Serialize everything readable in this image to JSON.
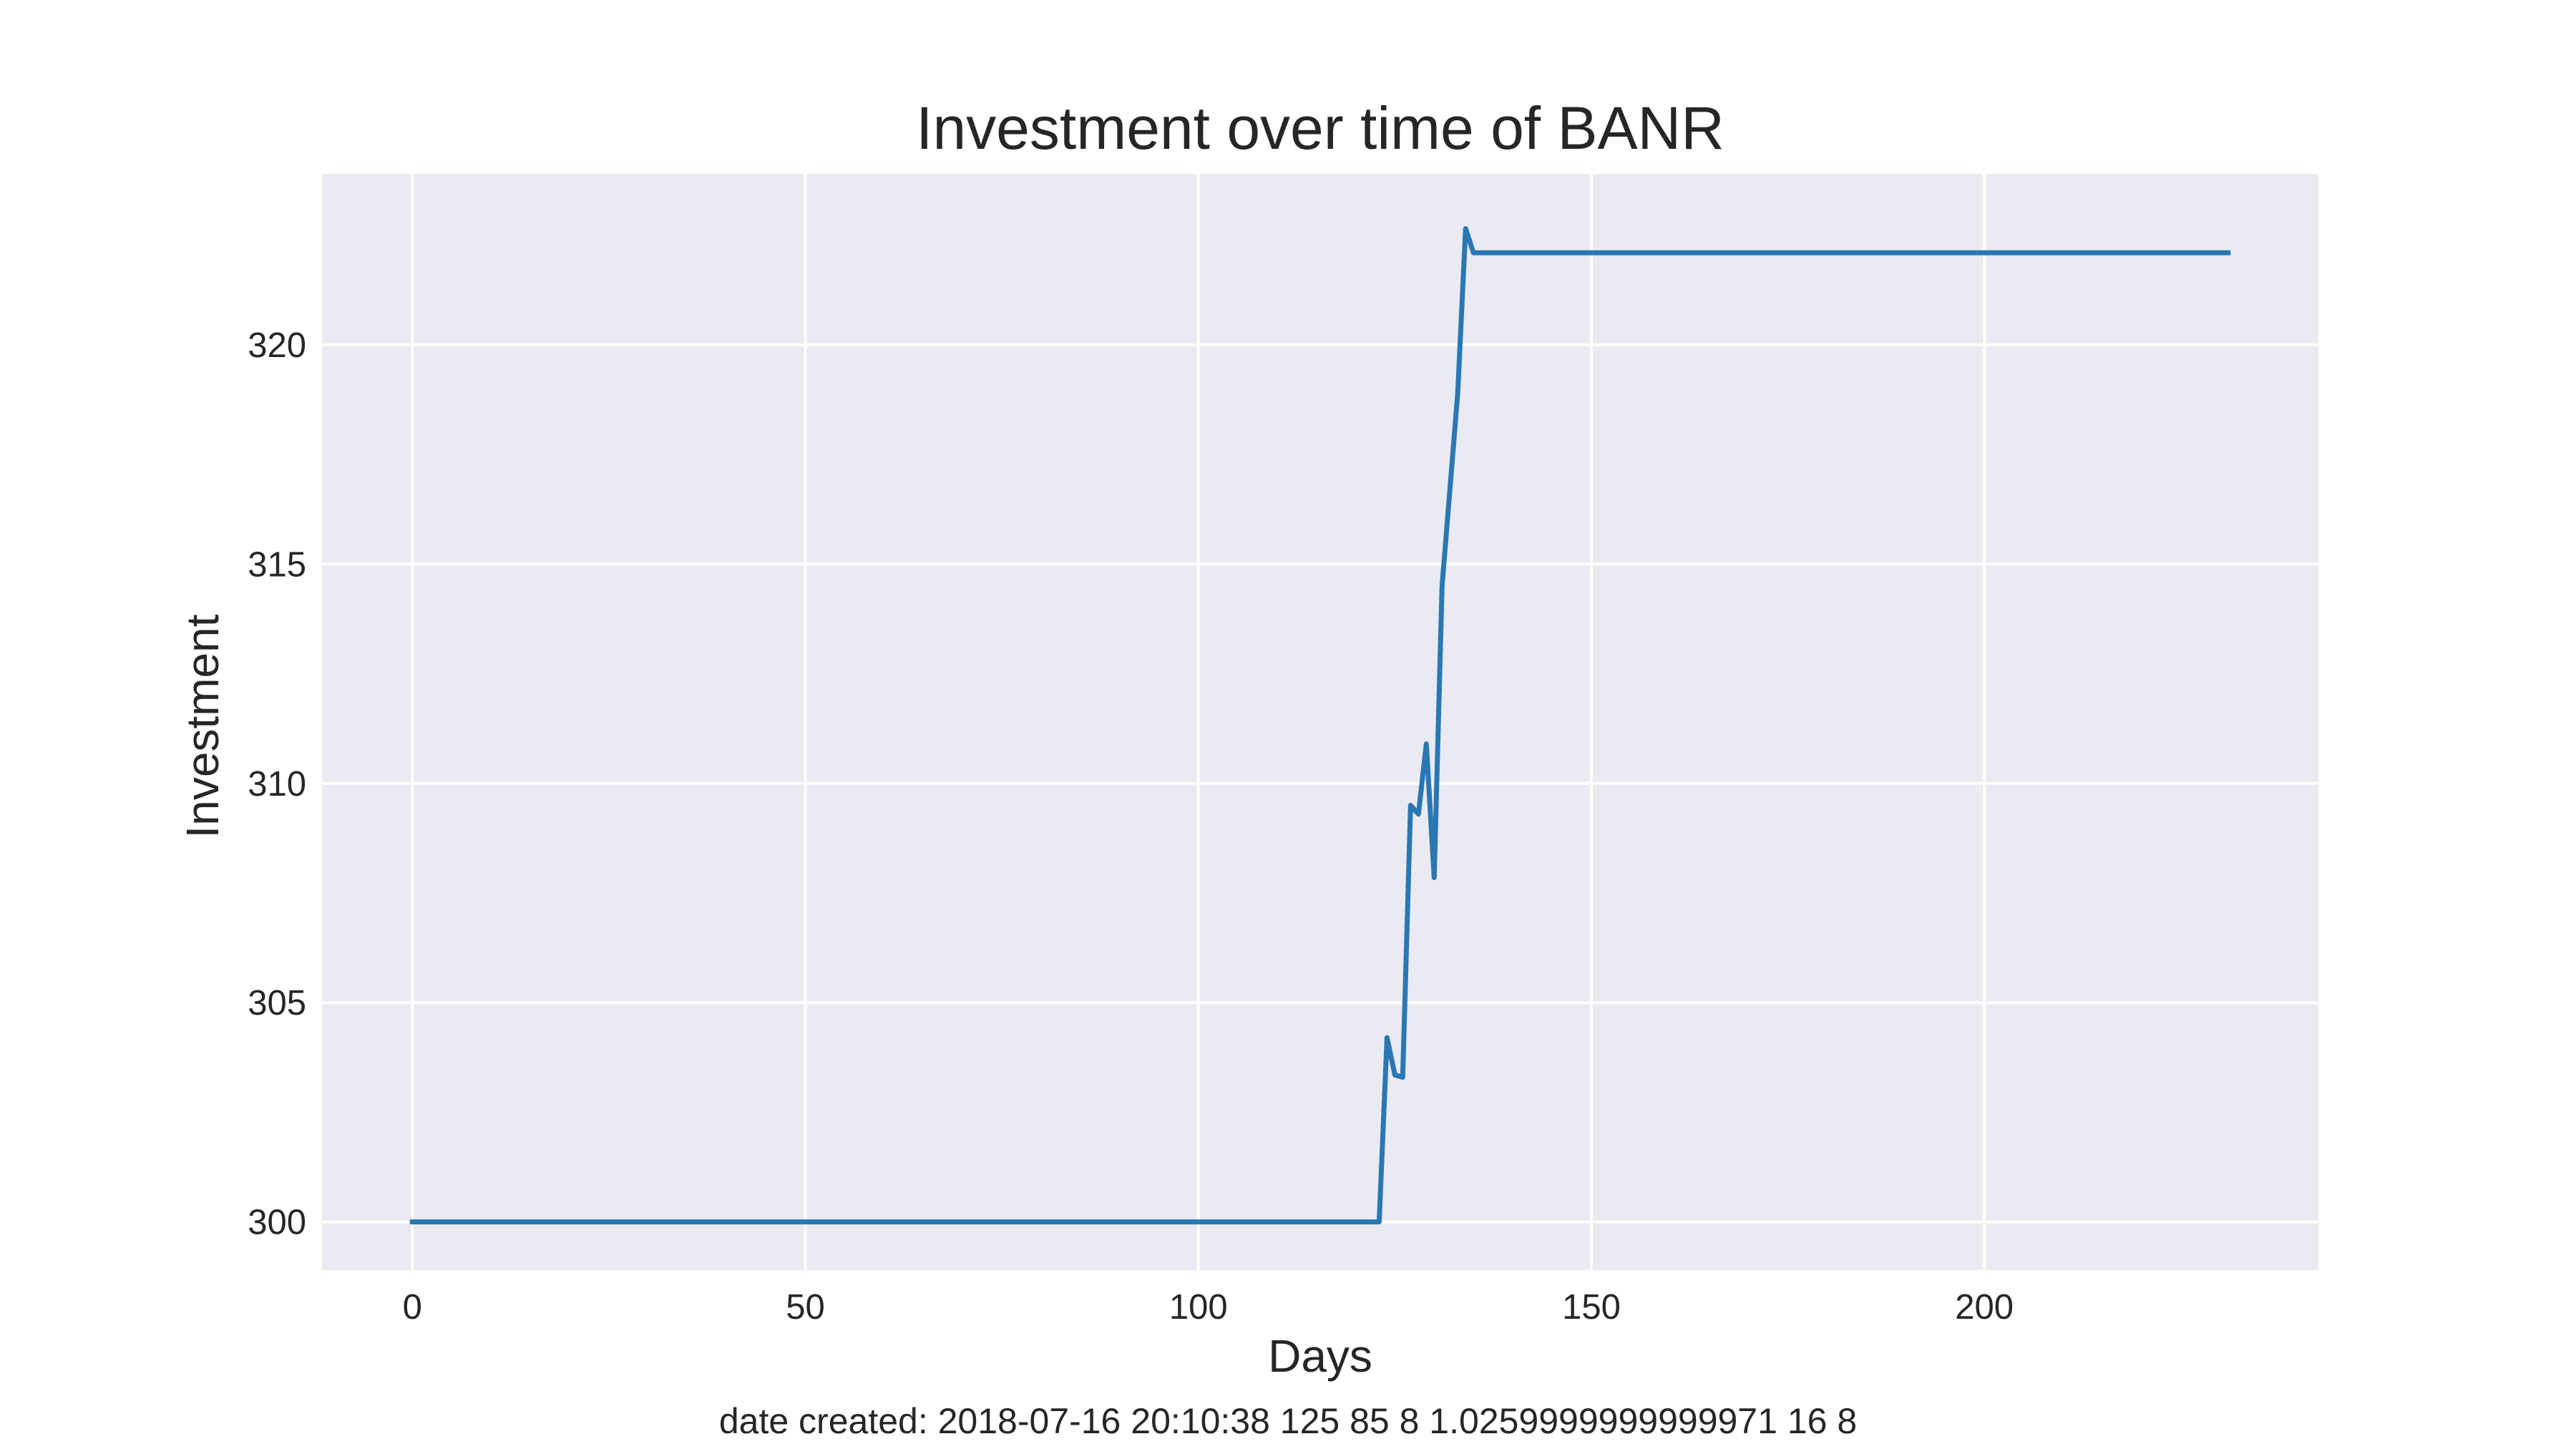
{
  "chart_data": {
    "type": "line",
    "title": "Investment over time of BANR",
    "xlabel": "Days",
    "ylabel": "Investment",
    "xlim": [
      -11.5,
      242.5
    ],
    "ylim": [
      298.9,
      323.9
    ],
    "xticks": [
      0,
      50,
      100,
      150,
      200
    ],
    "yticks": [
      300,
      305,
      310,
      315,
      320
    ],
    "grid": true,
    "background": "#eaeaf2",
    "grid_color": "#ffffff",
    "line_color": "#2a77b4",
    "series": [
      {
        "x": [
          0,
          123,
          124,
          125,
          126,
          127,
          128,
          129,
          130,
          131,
          133,
          134,
          135,
          231
        ],
        "y": [
          300.0,
          300.0,
          304.2,
          303.35,
          303.3,
          309.5,
          309.3,
          310.9,
          307.85,
          314.5,
          318.9,
          322.65,
          322.1,
          322.1
        ]
      }
    ]
  },
  "footer": {
    "text": "date created: 2018-07-16 20:10:38 125 85 8 1.0259999999999971 16 8"
  }
}
